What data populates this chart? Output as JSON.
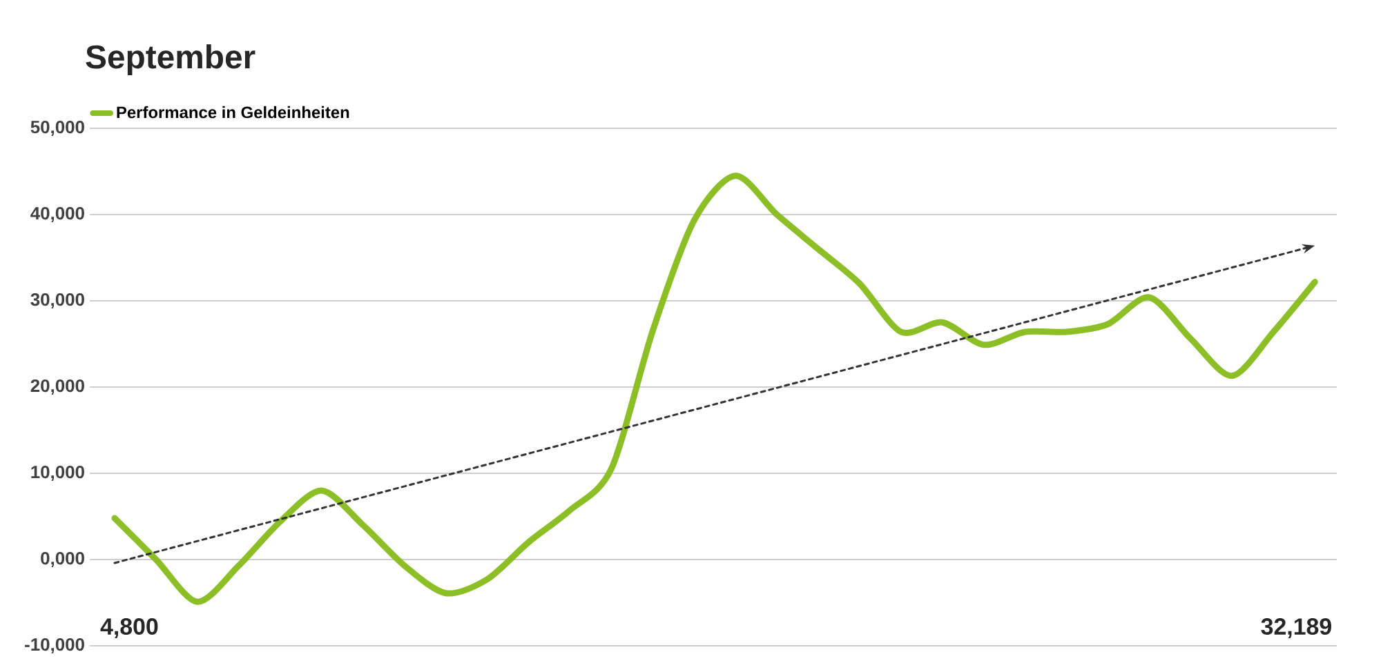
{
  "chart_data": {
    "type": "line",
    "title": "September",
    "categories": [
      null,
      null,
      null,
      null,
      null,
      null,
      null,
      null,
      null,
      null,
      null,
      null,
      null,
      null,
      null,
      null,
      null,
      null,
      null,
      null,
      null,
      null,
      null,
      null,
      null,
      null,
      null,
      null,
      null,
      null
    ],
    "series": [
      {
        "name": "Performance in Geldeinheiten",
        "color": "#8cbf26",
        "values": [
          4800,
          0,
          -4900,
          -700,
          4400,
          8000,
          4000,
          -700,
          -3900,
          -2300,
          2000,
          5700,
          10500,
          26500,
          39300,
          44500,
          40000,
          36000,
          32000,
          26400,
          27500,
          24900,
          26400,
          26400,
          27300,
          30400,
          25600,
          21300,
          26400,
          32189
        ]
      },
      {
        "type": "line",
        "color": "#333333",
        "line_style": "dashed",
        "values": [
          -400,
          null,
          null,
          null,
          null,
          null,
          null,
          null,
          null,
          null,
          null,
          null,
          null,
          null,
          null,
          null,
          null,
          null,
          null,
          null,
          null,
          null,
          null,
          null,
          null,
          null,
          null,
          null,
          null,
          36400
        ]
      }
    ],
    "ylim": [
      -10000,
      50000
    ],
    "yticks": [
      {
        "value": -10000,
        "label": "-10,000"
      },
      {
        "value": 0,
        "label": "0,000"
      },
      {
        "value": 10000,
        "label": "10,000"
      },
      {
        "value": 20000,
        "label": "20,000"
      },
      {
        "value": 30000,
        "label": "30,000"
      },
      {
        "value": 40000,
        "label": "40,000"
      },
      {
        "value": 50000,
        "label": "50,000"
      }
    ],
    "grid": "y",
    "legend": "top left",
    "tick_labels": "y",
    "annotations": [
      "4,800",
      "32,189"
    ]
  }
}
